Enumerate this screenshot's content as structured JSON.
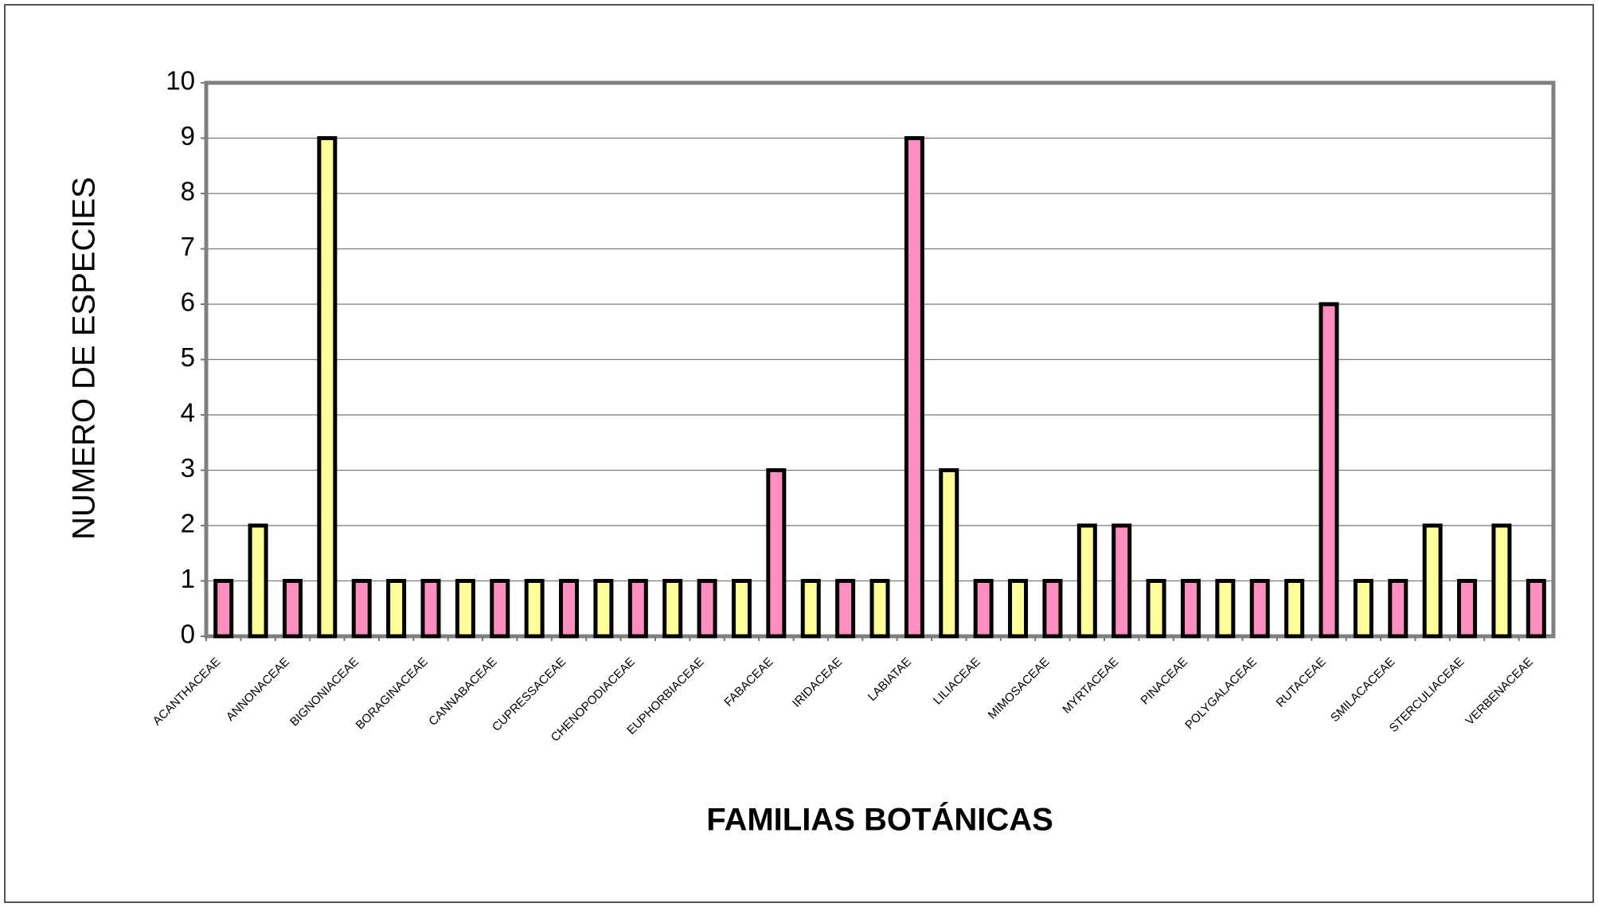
{
  "chart_data": {
    "type": "bar",
    "xlabel": "FAMILIAS BOTÁNICAS",
    "ylabel": "NUMERO DE ESPECIES",
    "categories": [
      "ACANTHACEAE",
      null,
      "ANNONACEAE",
      null,
      "BIGNONIACEAE",
      null,
      "BORAGINACEAE",
      null,
      "CANNABACEAE",
      null,
      "CUPRESSACEAE",
      null,
      "CHENOPODIACEAE",
      null,
      "EUPHORBIACEAE",
      null,
      "FABACEAE",
      null,
      "IRIDACEAE",
      null,
      "LABIATAE",
      null,
      "LILIACEAE",
      null,
      "MIMOSACEAE",
      null,
      "MYRTACEAE",
      null,
      "PINACEAE",
      null,
      "POLYGALACEAE",
      null,
      "RUTACEAE",
      null,
      "SMILACACEAE",
      null,
      "STERCULIACEAE",
      null,
      "VERBENACEAE"
    ],
    "values": [
      1,
      2,
      1,
      9,
      1,
      1,
      1,
      1,
      1,
      1,
      1,
      1,
      1,
      1,
      1,
      1,
      3,
      1,
      1,
      1,
      9,
      3,
      1,
      1,
      1,
      2,
      2,
      1,
      1,
      1,
      1,
      1,
      6,
      1,
      1,
      2,
      1,
      2,
      1
    ],
    "colors": [
      "#ff8fbd",
      "#ffff99"
    ],
    "ylim": [
      0,
      10
    ],
    "yticks": [
      0,
      1,
      2,
      3,
      4,
      5,
      6,
      7,
      8,
      9,
      10
    ],
    "grid": true
  }
}
